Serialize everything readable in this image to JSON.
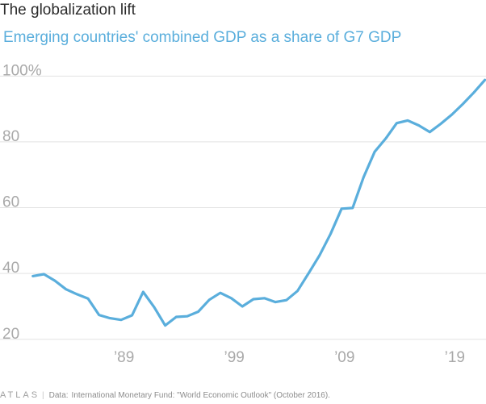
{
  "title": "The globalization lift",
  "subtitle": "Emerging countries' combined GDP as a share of G7 GDP",
  "footer": {
    "brand": "ATLAS",
    "separator": "|",
    "source_label": "Data:",
    "source_text": "International Monetary Fund: \"World Economic Outlook\" (October 2016)."
  },
  "colors": {
    "line": "#5aaedc",
    "grid": "#e3e3e3",
    "tick_text": "#a9a9a9",
    "title": "#2b2b2b"
  },
  "chart_data": {
    "type": "line",
    "title": "Emerging countries' combined GDP as a share of G7 GDP",
    "xlabel": "",
    "ylabel": "",
    "xlim": [
      1979.8,
      2021.1
    ],
    "ylim": [
      17,
      104
    ],
    "grid": true,
    "y_ticks": [
      {
        "value": 100,
        "label": "100%"
      },
      {
        "value": 80,
        "label": "80"
      },
      {
        "value": 60,
        "label": "60"
      },
      {
        "value": 40,
        "label": "40"
      },
      {
        "value": 20,
        "label": "20"
      }
    ],
    "x_ticks": [
      {
        "value": 1989,
        "label": "’89"
      },
      {
        "value": 1999,
        "label": "’99"
      },
      {
        "value": 2009,
        "label": "’09"
      },
      {
        "value": 2019,
        "label": "’19"
      }
    ],
    "series": [
      {
        "x": [
          1980,
          1981,
          1982,
          1983,
          1984,
          1985,
          1986,
          1987,
          1988,
          1989,
          1990,
          1991,
          1992,
          1993,
          1994,
          1995,
          1996,
          1997,
          1998,
          1999,
          2000,
          2001,
          2002,
          2003,
          2004,
          2005,
          2006,
          2007,
          2008,
          2009,
          2010,
          2011,
          2012,
          2013,
          2014,
          2015,
          2016,
          2017,
          2018,
          2019,
          2020,
          2021
        ],
        "values": [
          39.2,
          39.8,
          37.8,
          35.2,
          33.7,
          32.4,
          27.4,
          26.4,
          25.9,
          27.3,
          34.4,
          29.8,
          24.2,
          26.8,
          27.0,
          28.4,
          32.0,
          34.1,
          32.5,
          30.0,
          32.2,
          32.5,
          31.3,
          31.9,
          34.7,
          40.0,
          45.5,
          52.0,
          59.7,
          59.9,
          69.3,
          77.0,
          81.0,
          85.7,
          86.5,
          85.0,
          83.0,
          85.5,
          88.3,
          91.5,
          95.0,
          98.8
        ]
      }
    ]
  }
}
